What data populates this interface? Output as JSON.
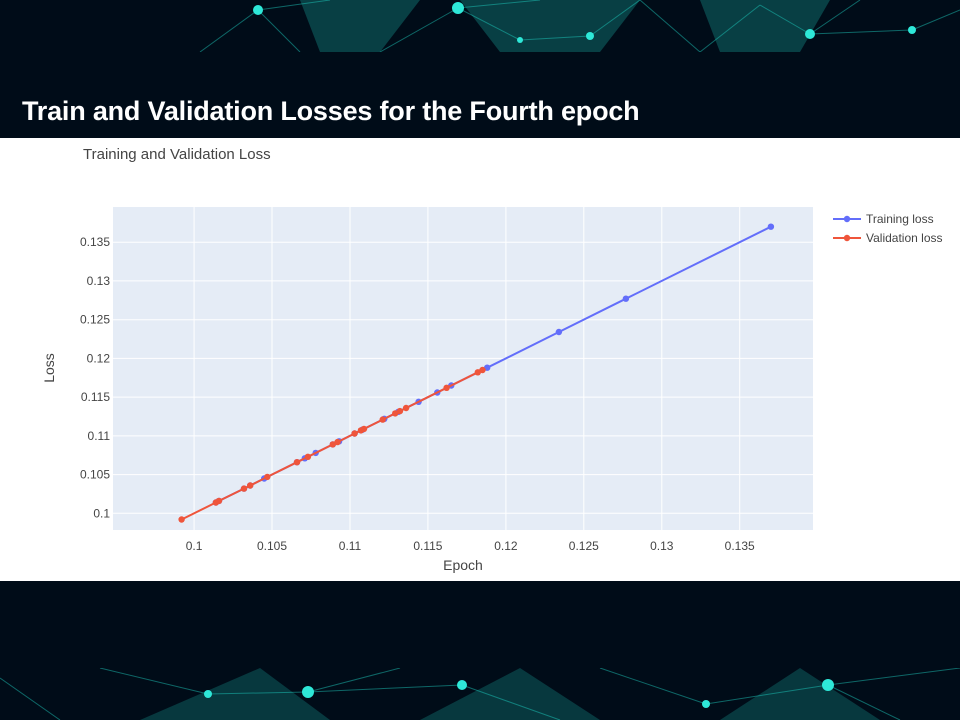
{
  "slide": {
    "title": "Train and Validation Losses for the Fourth epoch"
  },
  "colors": {
    "background": "#000c18",
    "plot_bg": "#e5ecf6",
    "training": "#636efa",
    "validation": "#ef553b",
    "network_accent": "#1fd6c7"
  },
  "chart_data": {
    "type": "line",
    "title": "Training and Validation Loss",
    "xlabel": "Epoch",
    "ylabel": "Loss",
    "xlim": [
      0.0948,
      0.1397
    ],
    "ylim": [
      0.09785,
      0.13954
    ],
    "x_ticks": [
      {
        "value": 0.1,
        "label": "0.1"
      },
      {
        "value": 0.105,
        "label": "0.105"
      },
      {
        "value": 0.11,
        "label": "0.11"
      },
      {
        "value": 0.115,
        "label": "0.115"
      },
      {
        "value": 0.12,
        "label": "0.12"
      },
      {
        "value": 0.125,
        "label": "0.125"
      },
      {
        "value": 0.13,
        "label": "0.13"
      },
      {
        "value": 0.135,
        "label": "0.135"
      }
    ],
    "y_ticks": [
      {
        "value": 0.1,
        "label": "0.1"
      },
      {
        "value": 0.105,
        "label": "0.105"
      },
      {
        "value": 0.11,
        "label": "0.11"
      },
      {
        "value": 0.115,
        "label": "0.115"
      },
      {
        "value": 0.12,
        "label": "0.12"
      },
      {
        "value": 0.125,
        "label": "0.125"
      },
      {
        "value": 0.13,
        "label": "0.13"
      },
      {
        "value": 0.135,
        "label": "0.135"
      }
    ],
    "grid": true,
    "legend": "top-right",
    "series": [
      {
        "name": "Training loss",
        "color": "#636efa",
        "x": [
          0.137,
          0.1277,
          0.1234,
          0.1188,
          0.1165,
          0.1156,
          0.1144,
          0.1131,
          0.1122,
          0.1108,
          0.1103,
          0.1093,
          0.1089,
          0.1078,
          0.1071,
          0.1066,
          0.1045,
          0.1036,
          0.1032,
          0.1016,
          0.1014
        ],
        "y": [
          0.137,
          0.1277,
          0.1234,
          0.1188,
          0.1165,
          0.1156,
          0.1144,
          0.1131,
          0.1122,
          0.1108,
          0.1103,
          0.1093,
          0.1089,
          0.1078,
          0.1071,
          0.1066,
          0.1045,
          0.1036,
          0.1032,
          0.1016,
          0.1014
        ]
      },
      {
        "name": "Validation loss",
        "color": "#ef553b",
        "x": [
          0.0992,
          0.1014,
          0.1016,
          0.1032,
          0.1036,
          0.1047,
          0.1066,
          0.1073,
          0.1089,
          0.1092,
          0.1103,
          0.1107,
          0.1109,
          0.1121,
          0.1129,
          0.1132,
          0.1136,
          0.1162,
          0.1182,
          0.1185
        ],
        "y": [
          0.0992,
          0.1014,
          0.1016,
          0.1032,
          0.1036,
          0.1047,
          0.1066,
          0.1073,
          0.1089,
          0.1092,
          0.1103,
          0.1107,
          0.1109,
          0.1121,
          0.1129,
          0.1132,
          0.1136,
          0.1162,
          0.1182,
          0.1185
        ]
      }
    ]
  }
}
